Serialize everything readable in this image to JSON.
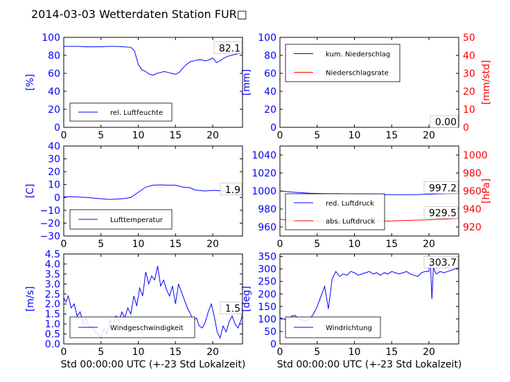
{
  "title": "2014-03-03 Wetterdaten Station FUR□",
  "colors": {
    "primary": "#0000ff",
    "secondary": "#ff0000",
    "frame": "#000000"
  },
  "chart_data": [
    {
      "id": "humidity",
      "type": "line",
      "ylabel": "[%]",
      "xlabel": "",
      "xlim": [
        0,
        24
      ],
      "ylim": [
        0,
        100
      ],
      "xticks": [
        "0",
        "5",
        "10",
        "15",
        "20"
      ],
      "yticks": [
        "0",
        "20",
        "40",
        "60",
        "80",
        "100"
      ],
      "legend_loc": "lower-left",
      "last_value_label": "82.1",
      "series": [
        {
          "name": "rel. Luftfeuchte",
          "color": "#0000ff",
          "x": [
            0,
            1,
            2,
            3,
            4,
            5,
            6,
            7,
            8,
            9,
            9.5,
            10,
            10.5,
            11,
            11.5,
            12,
            12.5,
            13,
            13.5,
            14,
            14.5,
            15,
            15.5,
            16,
            16.5,
            17,
            17.5,
            18,
            18.5,
            19,
            19.5,
            20,
            20.5,
            21,
            21.5,
            22,
            22.5,
            23,
            23.5,
            24
          ],
          "y": [
            90,
            90,
            90,
            89.5,
            89.5,
            89.5,
            90,
            90,
            89.5,
            89,
            85,
            70,
            64,
            62,
            59,
            58,
            60,
            61,
            62,
            61,
            60,
            59,
            61,
            66,
            70,
            73,
            74,
            75,
            75,
            74,
            75,
            77,
            72,
            74,
            77,
            79,
            80,
            81,
            82,
            82
          ]
        }
      ]
    },
    {
      "id": "precipitation",
      "type": "line",
      "ylabel": "[mm]",
      "y2label": "[mm/std]",
      "xlabel": "",
      "xlim": [
        0,
        24
      ],
      "ylim": [
        0,
        100
      ],
      "y2lim": [
        0,
        50
      ],
      "xticks": [
        "0",
        "5",
        "10",
        "15",
        "20"
      ],
      "yticks": [
        "0",
        "20",
        "40",
        "60",
        "80",
        "100"
      ],
      "y2ticks": [
        "0",
        "10",
        "20",
        "30",
        "40",
        "50"
      ],
      "legend_loc": "upper-left",
      "last_value_label": "0.00",
      "series": [
        {
          "name": "kum. Niederschlag",
          "color": "#0000ff",
          "axis": "left",
          "x": [
            0,
            24
          ],
          "y": [
            0,
            0
          ]
        },
        {
          "name": "Niederschlagsrate",
          "color": "#ff0000",
          "axis": "right",
          "x": [
            0,
            24
          ],
          "y": [
            0,
            0
          ]
        }
      ]
    },
    {
      "id": "temperature",
      "type": "line",
      "ylabel": "[C]",
      "xlabel": "",
      "xlim": [
        0,
        24
      ],
      "ylim": [
        -30,
        40
      ],
      "xticks": [
        "0",
        "5",
        "10",
        "15",
        "20"
      ],
      "yticks": [
        "−30",
        "−20",
        "−10",
        "0",
        "10",
        "20",
        "30",
        "40"
      ],
      "legend_loc": "lower-left",
      "last_value_label": "1.9",
      "series": [
        {
          "name": "Lufttemperatur",
          "color": "#0000ff",
          "x": [
            0,
            1,
            2,
            3,
            4,
            5,
            6,
            7,
            8,
            9,
            9.5,
            10,
            10.5,
            11,
            12,
            13,
            14,
            15,
            16,
            17,
            17.5,
            18,
            19,
            20,
            21,
            22,
            23,
            24
          ],
          "y": [
            0.5,
            0.5,
            0.3,
            0,
            -0.5,
            -1,
            -1.5,
            -1.3,
            -1,
            0,
            2,
            4,
            6,
            8,
            9.5,
            9.8,
            9.5,
            9.5,
            8,
            7.5,
            6,
            5.5,
            5,
            5.5,
            5.2,
            4.5,
            2.5,
            1.9
          ]
        }
      ]
    },
    {
      "id": "pressure",
      "type": "line",
      "ylabel": "",
      "y2label": "[hPa]",
      "xlabel": "",
      "xlim": [
        0,
        24
      ],
      "ylim": [
        950,
        1050
      ],
      "y2lim": [
        910,
        1010
      ],
      "xticks": [
        "0",
        "5",
        "10",
        "15",
        "20"
      ],
      "yticks": [
        "960",
        "980",
        "1000",
        "1020",
        "1040"
      ],
      "y2ticks": [
        "920",
        "940",
        "960",
        "980",
        "1000"
      ],
      "legend_loc": "lower-left",
      "value_labels": [
        "997.2",
        "929.5"
      ],
      "series": [
        {
          "name": "red. Luftdruck",
          "color": "#0000ff",
          "axis": "left",
          "x": [
            0,
            2,
            4,
            6,
            8,
            10,
            12,
            14,
            16,
            18,
            20,
            22,
            24
          ],
          "y": [
            1000,
            998.5,
            997.5,
            997,
            997,
            996.5,
            996,
            996,
            996,
            996,
            996.5,
            997,
            997.2
          ]
        },
        {
          "name": "abs. Luftdruck",
          "color": "#ff0000",
          "axis": "right",
          "x": [
            0,
            2,
            4,
            6,
            8,
            10,
            12,
            14,
            16,
            18,
            20,
            22,
            24
          ],
          "y": [
            928.5,
            927,
            926.5,
            926.5,
            926.5,
            926.5,
            926.3,
            926.5,
            927,
            927.5,
            928,
            928.8,
            929.5
          ]
        }
      ]
    },
    {
      "id": "wind_speed",
      "type": "line",
      "ylabel": "[m/s]",
      "xlabel": "Std 00:00:00 UTC (+-23 Std Lokalzeit)",
      "xlim": [
        0,
        24
      ],
      "ylim": [
        0,
        4.5
      ],
      "xticks": [
        "0",
        "5",
        "10",
        "15",
        "20"
      ],
      "yticks": [
        "0.0",
        "0.5",
        "1.0",
        "1.5",
        "2.0",
        "2.5",
        "3.0",
        "3.5",
        "4.0",
        "4.5"
      ],
      "legend_loc": "lower-left",
      "last_value_label": "1.5",
      "series": [
        {
          "name": "Windgeschwindigkeit",
          "color": "#0000ff",
          "x": [
            0,
            0.3,
            0.6,
            1,
            1.4,
            1.8,
            2.2,
            2.6,
            3,
            3.4,
            3.8,
            4.2,
            4.6,
            5,
            5.4,
            5.8,
            6.2,
            6.6,
            7,
            7.4,
            7.8,
            8.2,
            8.6,
            9,
            9.4,
            9.8,
            10.2,
            10.6,
            11,
            11.4,
            11.8,
            12.2,
            12.6,
            13,
            13.4,
            13.8,
            14.2,
            14.6,
            15,
            15.4,
            15.8,
            16.2,
            16.6,
            17,
            17.4,
            17.8,
            18.2,
            18.6,
            19,
            19.4,
            19.8,
            20.2,
            20.6,
            21,
            21.4,
            21.8,
            22.2,
            22.6,
            23,
            23.4,
            23.8,
            24
          ],
          "y": [
            2.3,
            2.1,
            2.4,
            1.8,
            2.0,
            1.4,
            1.6,
            1.0,
            1.3,
            0.8,
            0.9,
            0.6,
            0.5,
            0.3,
            0.8,
            0.5,
            1.2,
            0.9,
            1.4,
            1.1,
            1.6,
            1.3,
            1.8,
            1.5,
            2.4,
            1.9,
            2.8,
            2.4,
            3.6,
            3.0,
            3.4,
            3.2,
            3.9,
            2.9,
            3.2,
            2.7,
            2.4,
            2.9,
            2.0,
            3.0,
            2.6,
            2.2,
            1.8,
            1.5,
            1.2,
            1.3,
            0.9,
            0.8,
            1.1,
            1.6,
            2.0,
            1.4,
            0.6,
            0.3,
            0.9,
            0.6,
            1.1,
            1.4,
            1.0,
            0.8,
            1.2,
            1.5
          ]
        }
      ]
    },
    {
      "id": "wind_direction",
      "type": "line",
      "ylabel": "[deg]",
      "xlabel": "Std 00:00:00 UTC (+-23 Std Lokalzeit)",
      "xlim": [
        0,
        24
      ],
      "ylim": [
        0,
        360
      ],
      "xticks": [
        "0",
        "5",
        "10",
        "15",
        "20"
      ],
      "yticks": [
        "0",
        "50",
        "100",
        "150",
        "200",
        "250",
        "300",
        "350"
      ],
      "legend_loc": "lower-left",
      "last_value_label": "303.7",
      "series": [
        {
          "name": "Windrichtung",
          "color": "#0000ff",
          "x": [
            0,
            0.5,
            1,
            1.5,
            2,
            2.5,
            3,
            3.5,
            4,
            4.5,
            5,
            5.5,
            6,
            6.5,
            7,
            7.5,
            8,
            8.5,
            9,
            9.5,
            10,
            10.5,
            11,
            11.5,
            12,
            12.5,
            13,
            13.5,
            14,
            14.5,
            15,
            15.5,
            16,
            16.5,
            17,
            17.5,
            18,
            18.5,
            19,
            19.5,
            20,
            20.2,
            20.4,
            20.6,
            20.8,
            21,
            21.5,
            22,
            22.5,
            23,
            23.5,
            24
          ],
          "y": [
            105,
            100,
            95,
            110,
            115,
            100,
            95,
            90,
            100,
            120,
            150,
            190,
            230,
            140,
            260,
            290,
            270,
            280,
            275,
            290,
            285,
            275,
            280,
            285,
            290,
            280,
            285,
            275,
            285,
            280,
            290,
            285,
            280,
            285,
            290,
            280,
            275,
            270,
            285,
            290,
            290,
            330,
            180,
            310,
            290,
            280,
            290,
            285,
            290,
            295,
            300,
            304
          ]
        }
      ]
    }
  ]
}
